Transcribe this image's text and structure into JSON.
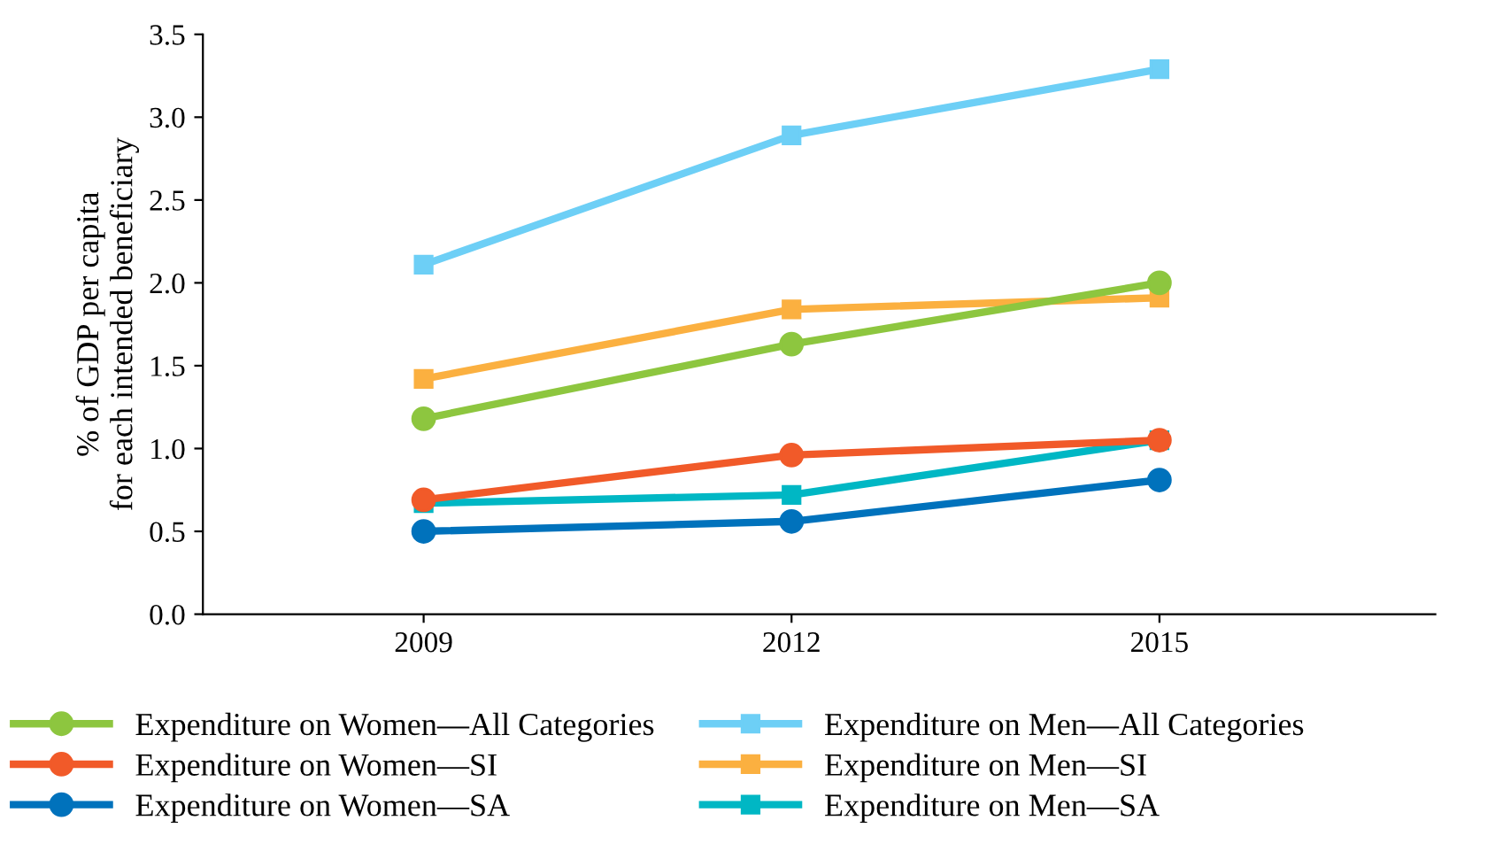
{
  "chart_data": {
    "type": "line",
    "ylabel": "% of GDP per capita\nfor each intended beneficiary",
    "categories": [
      "2009",
      "2012",
      "2015"
    ],
    "ylim": [
      0,
      3.5
    ],
    "yticks": [
      {
        "value": 0,
        "label": "0.0"
      },
      0.5,
      {
        "value": 1,
        "label": "1.0"
      },
      1.5,
      {
        "value": 2,
        "label": "2.0"
      },
      2.5,
      {
        "value": 3,
        "label": "3.0"
      },
      3.5
    ],
    "grid": false,
    "legend": "bottom",
    "line_style": "solid",
    "series": [
      {
        "name": "Expenditure on Women—All Categories",
        "color": "#8dc63f",
        "marker": "circle",
        "values": [
          1.18,
          1.63,
          2.0
        ]
      },
      {
        "name": "Expenditure on Men—All Categories",
        "color": "#6dcff6",
        "marker": "square",
        "values": [
          2.11,
          2.89,
          3.29
        ]
      },
      {
        "name": "Expenditure on Women—SI",
        "color": "#f15a29",
        "marker": "circle",
        "values": [
          0.69,
          0.96,
          1.05
        ]
      },
      {
        "name": "Expenditure on Men—SI",
        "color": "#fbb040",
        "marker": "square",
        "values": [
          1.42,
          1.84,
          1.91
        ]
      },
      {
        "name": "Expenditure on Women—SA",
        "color": "#0072bc",
        "marker": "circle",
        "values": [
          0.5,
          0.56,
          0.81
        ]
      },
      {
        "name": "Expenditure on Men—SA",
        "color": "#00b7c4",
        "marker": "square",
        "values": [
          0.67,
          0.72,
          1.05
        ]
      }
    ]
  }
}
